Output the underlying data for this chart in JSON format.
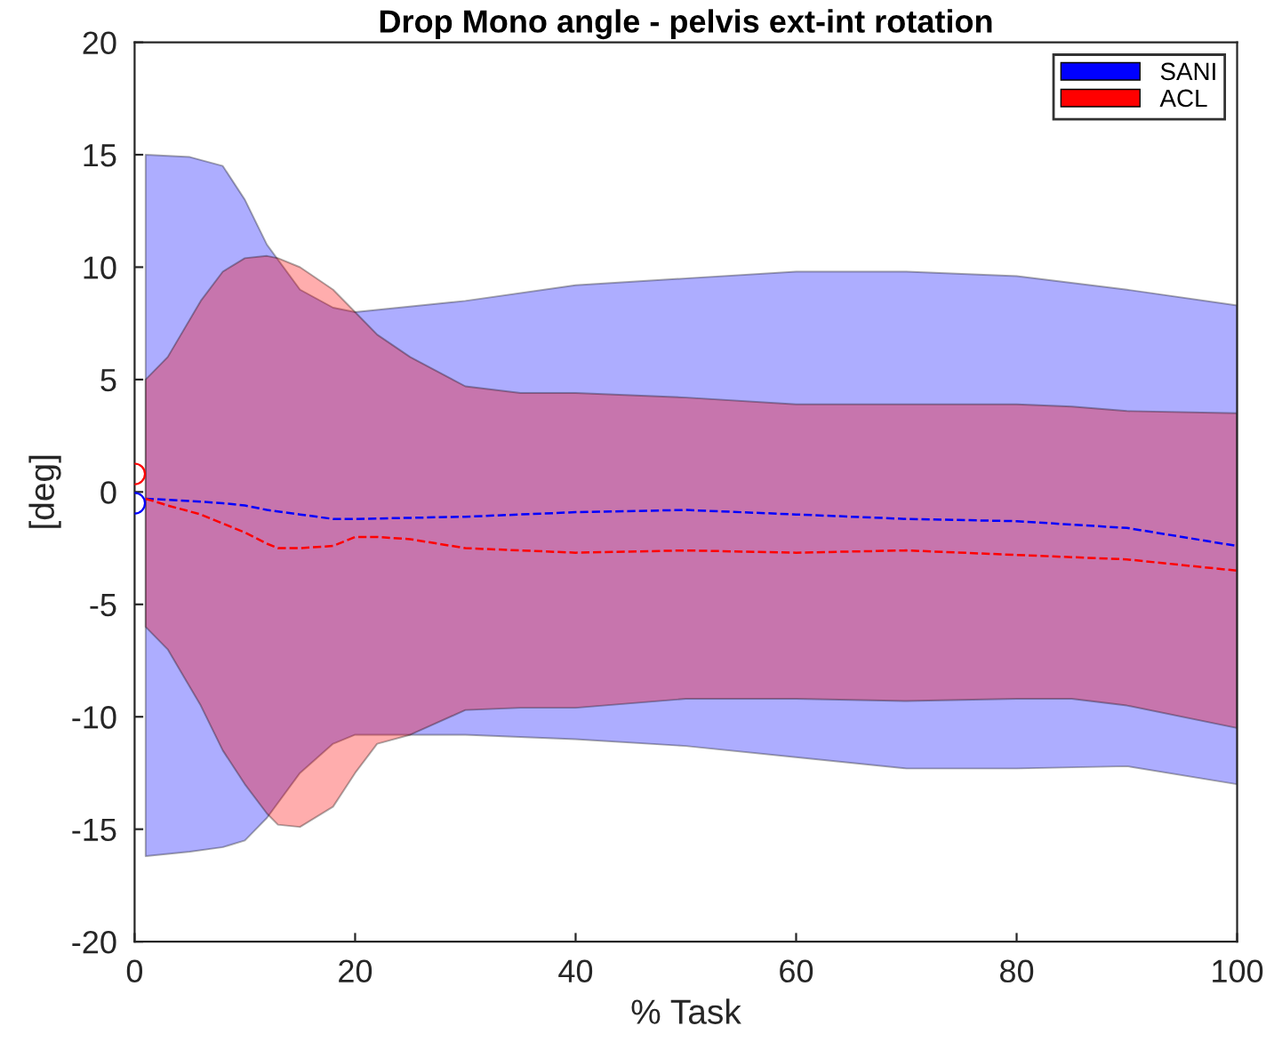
{
  "chart_data": {
    "type": "line",
    "title": "Drop Mono angle - pelvis ext-int rotation",
    "xlabel": "% Task",
    "ylabel": "[deg]",
    "xlim": [
      0,
      100
    ],
    "ylim": [
      -20,
      20
    ],
    "xticks": [
      0,
      20,
      40,
      60,
      80,
      100
    ],
    "yticks": [
      -20,
      -15,
      -10,
      -5,
      0,
      5,
      10,
      15,
      20
    ],
    "grid": false,
    "legend": "top right",
    "line_style": "dashed",
    "series": [
      {
        "name": "SANI",
        "color": "#0000ff",
        "x": [
          1,
          5,
          8,
          10,
          12,
          15,
          18,
          20,
          30,
          40,
          50,
          60,
          70,
          80,
          90,
          100
        ],
        "values": [
          -0.3,
          -0.4,
          -0.5,
          -0.6,
          -0.8,
          -1.0,
          -1.2,
          -1.2,
          -1.1,
          -0.9,
          -0.8,
          -1.0,
          -1.2,
          -1.3,
          -1.6,
          -2.4
        ],
        "upper": [
          15,
          14.9,
          14.5,
          13,
          11,
          9,
          8.2,
          8,
          8.5,
          9.2,
          9.5,
          9.8,
          9.8,
          9.6,
          9,
          8.3
        ],
        "lower": [
          -16.2,
          -16,
          -15.8,
          -15.5,
          -14.5,
          -12.5,
          -11.2,
          -10.8,
          -10.8,
          -11,
          -11.3,
          -11.8,
          -12.3,
          -12.3,
          -12.2,
          -13
        ]
      },
      {
        "name": "ACL",
        "color": "#ff0000",
        "x": [
          1,
          3,
          6,
          8,
          10,
          12,
          13,
          15,
          18,
          20,
          22,
          25,
          30,
          35,
          40,
          50,
          60,
          70,
          80,
          85,
          90,
          100
        ],
        "values": [
          -0.3,
          -0.6,
          -1.0,
          -1.4,
          -1.8,
          -2.3,
          -2.5,
          -2.5,
          -2.4,
          -2.0,
          -2.0,
          -2.1,
          -2.5,
          -2.6,
          -2.7,
          -2.6,
          -2.7,
          -2.6,
          -2.8,
          -2.9,
          -3.0,
          -3.5
        ],
        "upper": [
          5,
          6,
          8.5,
          9.8,
          10.4,
          10.5,
          10.4,
          10,
          9,
          8,
          7,
          6,
          4.7,
          4.4,
          4.4,
          4.2,
          3.9,
          3.9,
          3.9,
          3.8,
          3.6,
          3.5
        ],
        "lower": [
          -6,
          -7,
          -9.5,
          -11.5,
          -13,
          -14.3,
          -14.8,
          -14.9,
          -14,
          -12.5,
          -11.2,
          -10.8,
          -9.7,
          -9.6,
          -9.6,
          -9.2,
          -9.2,
          -9.3,
          -9.2,
          -9.2,
          -9.5,
          -10.5
        ]
      },
      {
        "type": "scatter",
        "marker": "circle",
        "color": "#ff0000",
        "x": [
          0
        ],
        "values": [
          0.8
        ]
      },
      {
        "type": "scatter",
        "marker": "circle",
        "color": "#0000ff",
        "x": [
          0
        ],
        "values": [
          -0.5
        ]
      }
    ]
  }
}
